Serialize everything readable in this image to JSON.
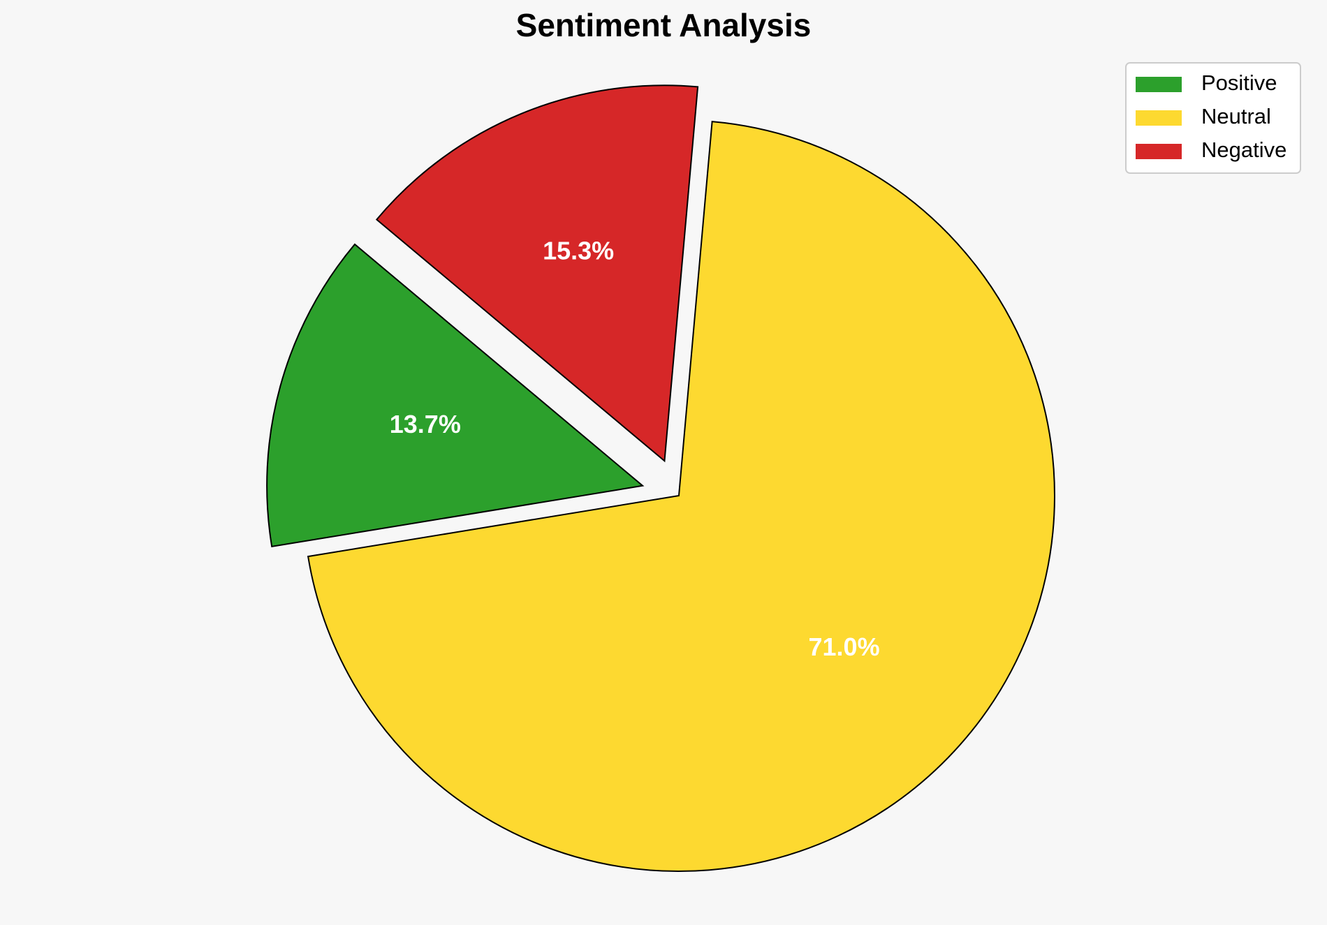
{
  "chart_data": {
    "type": "pie",
    "title": "Sentiment Analysis",
    "categories": [
      "Positive",
      "Neutral",
      "Negative"
    ],
    "values": [
      13.7,
      71.0,
      15.3
    ],
    "value_labels": [
      "13.7%",
      "71.0%",
      "15.3%"
    ],
    "colors": [
      "#2ca02c",
      "#fdd930",
      "#d62728"
    ],
    "explode": [
      0.1,
      0,
      0.1
    ],
    "startangle": 140,
    "legend": "upper right"
  }
}
